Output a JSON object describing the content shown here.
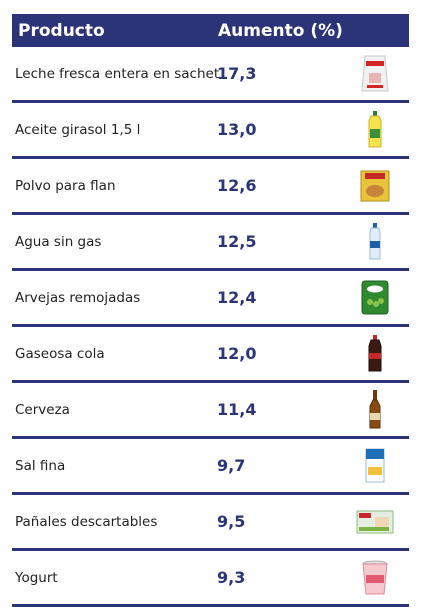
{
  "header": {
    "product": "Producto",
    "increase": "Aumento (%)"
  },
  "rows": [
    {
      "name": "Leche fresca entera en sachet",
      "value": "17,3",
      "icon": "milk-sachet-icon"
    },
    {
      "name": "Aceite girasol 1,5 l",
      "value": "13,0",
      "icon": "oil-bottle-icon"
    },
    {
      "name": "Polvo para flan",
      "value": "12,6",
      "icon": "flan-box-icon"
    },
    {
      "name": "Agua sin gas",
      "value": "12,5",
      "icon": "water-bottle-icon"
    },
    {
      "name": "Arvejas remojadas",
      "value": "12,4",
      "icon": "peas-can-icon"
    },
    {
      "name": "Gaseosa cola",
      "value": "12,0",
      "icon": "cola-bottle-icon"
    },
    {
      "name": "Cerveza",
      "value": "11,4",
      "icon": "beer-bottle-icon"
    },
    {
      "name": "Sal fina",
      "value": "9,7",
      "icon": "salt-package-icon"
    },
    {
      "name": "Pañales descartables",
      "value": "9,5",
      "icon": "diapers-pack-icon"
    },
    {
      "name": "Yogurt",
      "value": "9,3",
      "icon": "yogurt-cup-icon"
    }
  ]
}
